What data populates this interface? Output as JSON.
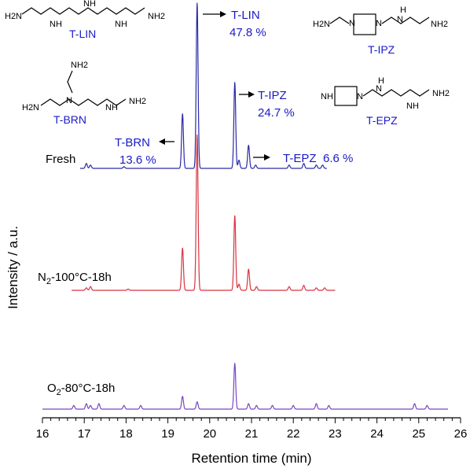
{
  "chart_data": {
    "type": "line",
    "xlabel": "Retention time (min)",
    "ylabel": "Intensity / a.u.",
    "xlim": [
      16,
      26
    ],
    "x_ticks": [
      "16",
      "17",
      "18",
      "19",
      "20",
      "21",
      "22",
      "23",
      "24",
      "25",
      "26"
    ],
    "grid": false,
    "series": [
      {
        "name": "Fresh",
        "label_parts": [
          "Fresh"
        ],
        "color": "#2a2aa6",
        "peaks": [
          {
            "x": 17.05,
            "h": 0.03
          },
          {
            "x": 17.15,
            "h": 0.02
          },
          {
            "x": 17.95,
            "h": 0.01
          },
          {
            "x": 19.35,
            "h": 0.33
          },
          {
            "x": 19.7,
            "h": 1.0
          },
          {
            "x": 20.6,
            "h": 0.52
          },
          {
            "x": 20.7,
            "h": 0.05
          },
          {
            "x": 20.93,
            "h": 0.14
          },
          {
            "x": 21.1,
            "h": 0.02
          },
          {
            "x": 21.9,
            "h": 0.02
          },
          {
            "x": 22.25,
            "h": 0.03
          },
          {
            "x": 22.55,
            "h": 0.02
          },
          {
            "x": 22.7,
            "h": 0.02
          }
        ]
      },
      {
        "name": "N2-100°C-18h",
        "label_parts": [
          "N",
          "2",
          "-100°C-18h"
        ],
        "color": "#d9333f",
        "peaks": [
          {
            "x": 17.05,
            "h": 0.02
          },
          {
            "x": 17.15,
            "h": 0.03
          },
          {
            "x": 18.05,
            "h": 0.01
          },
          {
            "x": 19.35,
            "h": 0.34
          },
          {
            "x": 19.7,
            "h": 1.25
          },
          {
            "x": 20.6,
            "h": 0.6
          },
          {
            "x": 20.7,
            "h": 0.05
          },
          {
            "x": 20.93,
            "h": 0.17
          },
          {
            "x": 21.12,
            "h": 0.03
          },
          {
            "x": 21.9,
            "h": 0.03
          },
          {
            "x": 22.25,
            "h": 0.04
          },
          {
            "x": 22.55,
            "h": 0.02
          },
          {
            "x": 22.75,
            "h": 0.02
          }
        ]
      },
      {
        "name": "O2-80°C-18h",
        "label_parts": [
          "O",
          "2",
          "-80°C-18h"
        ],
        "color": "#7a45c2",
        "peaks": [
          {
            "x": 16.75,
            "h": 0.02
          },
          {
            "x": 17.05,
            "h": 0.03
          },
          {
            "x": 17.15,
            "h": 0.02
          },
          {
            "x": 17.35,
            "h": 0.03
          },
          {
            "x": 17.95,
            "h": 0.02
          },
          {
            "x": 18.35,
            "h": 0.02
          },
          {
            "x": 19.35,
            "h": 0.07
          },
          {
            "x": 19.7,
            "h": 0.04
          },
          {
            "x": 20.6,
            "h": 0.25
          },
          {
            "x": 20.93,
            "h": 0.03
          },
          {
            "x": 21.12,
            "h": 0.02
          },
          {
            "x": 21.5,
            "h": 0.02
          },
          {
            "x": 22.0,
            "h": 0.02
          },
          {
            "x": 22.55,
            "h": 0.03
          },
          {
            "x": 22.85,
            "h": 0.02
          },
          {
            "x": 24.9,
            "h": 0.03
          },
          {
            "x": 25.2,
            "h": 0.02
          }
        ]
      }
    ],
    "annotations": [
      {
        "name": "T-LIN",
        "percent": "47.8 %"
      },
      {
        "name": "T-IPZ",
        "percent": "24.7 %"
      },
      {
        "name": "T-BRN",
        "percent": "13.6 %"
      },
      {
        "name": "T-EPZ",
        "percent": "6.6 %"
      }
    ],
    "structures": [
      {
        "name": "T-LIN"
      },
      {
        "name": "T-IPZ"
      },
      {
        "name": "T-BRN"
      },
      {
        "name": "T-EPZ"
      }
    ],
    "atoms": {
      "amine": "NH",
      "primary_amine_left": "H2N",
      "primary_amine_right": "NH2",
      "n": "N",
      "h": "H",
      "sub2": "2"
    },
    "annotation_color": "#1a1ac8"
  }
}
